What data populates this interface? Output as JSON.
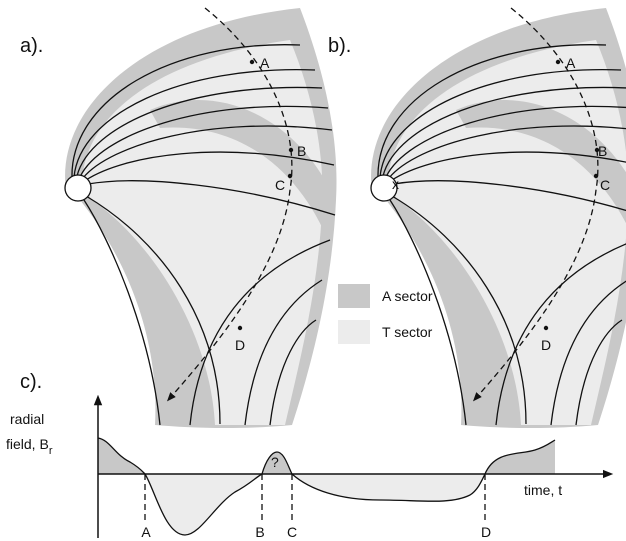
{
  "panels": [
    {
      "label": "a).",
      "points": [
        "A",
        "B",
        "C",
        "D"
      ]
    },
    {
      "label": "b).",
      "points": [
        "A",
        "B",
        "C",
        "D"
      ],
      "marker": "x"
    }
  ],
  "legend": [
    {
      "label": "A sector"
    },
    {
      "label": "T sector"
    }
  ],
  "plot": {
    "label": "c).",
    "y_axis_label": {
      "line1": "radial",
      "line2": "field, B",
      "subscript": "r"
    },
    "x_axis_label": "time, t",
    "unknown": "?",
    "crossings": [
      "A",
      "B",
      "C",
      "D"
    ]
  }
}
